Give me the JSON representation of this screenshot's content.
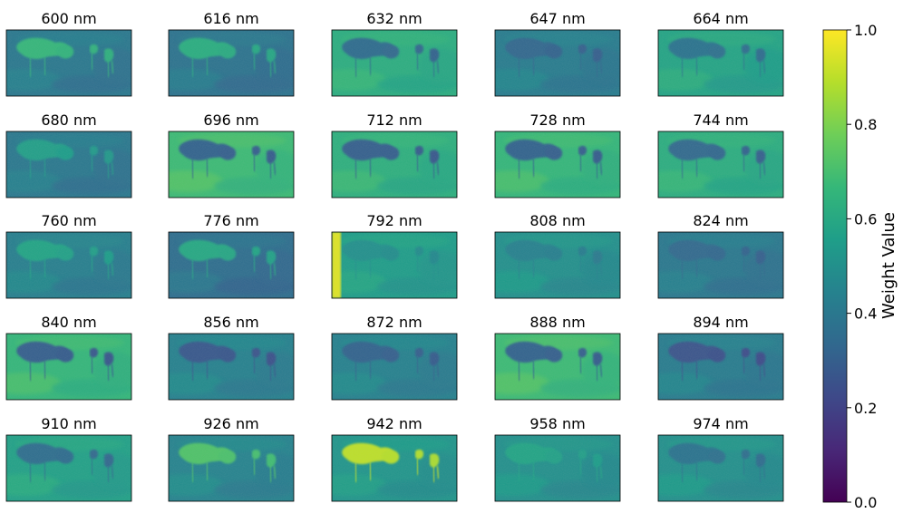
{
  "chart_data": {
    "type": "heatmap",
    "grid": {
      "rows": 5,
      "cols": 5
    },
    "panels": [
      {
        "label": "600 nm",
        "mean_weight": 0.4,
        "feature_weight": 0.66,
        "edge_glow": 0
      },
      {
        "label": "616 nm",
        "mean_weight": 0.38,
        "feature_weight": 0.62,
        "edge_glow": 0
      },
      {
        "label": "632 nm",
        "mean_weight": 0.62,
        "feature_weight": 0.35,
        "edge_glow": 0
      },
      {
        "label": "647 nm",
        "mean_weight": 0.42,
        "feature_weight": 0.33,
        "edge_glow": 0
      },
      {
        "label": "664 nm",
        "mean_weight": 0.58,
        "feature_weight": 0.38,
        "edge_glow": 0
      },
      {
        "label": "680 nm",
        "mean_weight": 0.4,
        "feature_weight": 0.56,
        "edge_glow": 0
      },
      {
        "label": "696 nm",
        "mean_weight": 0.68,
        "feature_weight": 0.32,
        "edge_glow": 0
      },
      {
        "label": "712 nm",
        "mean_weight": 0.63,
        "feature_weight": 0.31,
        "edge_glow": 0
      },
      {
        "label": "728 nm",
        "mean_weight": 0.66,
        "feature_weight": 0.32,
        "edge_glow": 0
      },
      {
        "label": "744 nm",
        "mean_weight": 0.62,
        "feature_weight": 0.34,
        "edge_glow": 0
      },
      {
        "label": "760 nm",
        "mean_weight": 0.43,
        "feature_weight": 0.58,
        "edge_glow": 0
      },
      {
        "label": "776 nm",
        "mean_weight": 0.36,
        "feature_weight": 0.6,
        "edge_glow": 0
      },
      {
        "label": "792 nm",
        "mean_weight": 0.55,
        "feature_weight": 0.5,
        "edge_glow": 0.95
      },
      {
        "label": "808 nm",
        "mean_weight": 0.5,
        "feature_weight": 0.44,
        "edge_glow": 0
      },
      {
        "label": "824 nm",
        "mean_weight": 0.4,
        "feature_weight": 0.34,
        "edge_glow": 0
      },
      {
        "label": "840 nm",
        "mean_weight": 0.66,
        "feature_weight": 0.3,
        "edge_glow": 0
      },
      {
        "label": "856 nm",
        "mean_weight": 0.44,
        "feature_weight": 0.28,
        "edge_glow": 0
      },
      {
        "label": "872 nm",
        "mean_weight": 0.44,
        "feature_weight": 0.32,
        "edge_glow": 0
      },
      {
        "label": "888 nm",
        "mean_weight": 0.68,
        "feature_weight": 0.32,
        "edge_glow": 0
      },
      {
        "label": "894 nm",
        "mean_weight": 0.42,
        "feature_weight": 0.26,
        "edge_glow": 0
      },
      {
        "label": "910 nm",
        "mean_weight": 0.57,
        "feature_weight": 0.36,
        "edge_glow": 0
      },
      {
        "label": "926 nm",
        "mean_weight": 0.45,
        "feature_weight": 0.72,
        "edge_glow": 0
      },
      {
        "label": "942 nm",
        "mean_weight": 0.52,
        "feature_weight": 0.9,
        "edge_glow": 0
      },
      {
        "label": "958 nm",
        "mean_weight": 0.5,
        "feature_weight": 0.58,
        "edge_glow": 0
      },
      {
        "label": "974 nm",
        "mean_weight": 0.5,
        "feature_weight": 0.38,
        "edge_glow": 0
      }
    ],
    "colorbar": {
      "label": "Weight Value",
      "range": [
        0.0,
        1.0
      ],
      "ticks": [
        0.0,
        0.2,
        0.4,
        0.6,
        0.8,
        1.0
      ],
      "tick_labels": [
        "0.0",
        "0.2",
        "0.4",
        "0.6",
        "0.8",
        "1.0"
      ],
      "colormap": "viridis",
      "colormap_stops": [
        "#440154",
        "#482878",
        "#3e4989",
        "#31688e",
        "#26828e",
        "#1f9e89",
        "#35b779",
        "#6ece58",
        "#b5de2b",
        "#fde725"
      ]
    }
  }
}
